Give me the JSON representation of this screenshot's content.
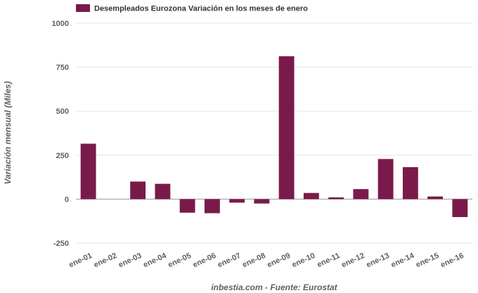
{
  "chart_data": {
    "type": "bar",
    "categories": [
      "ene-01",
      "ene-02",
      "ene-03",
      "ene-04",
      "ene-05",
      "ene-06",
      "ene-07",
      "ene-08",
      "ene-09",
      "ene-10",
      "ene-11",
      "ene-12",
      "ene-13",
      "ene-14",
      "ene-15",
      "ene-16"
    ],
    "series": [
      {
        "name": "Desempleados Eurozona Variación en los meses de enero",
        "values": [
          315,
          0,
          100,
          87,
          -77,
          -80,
          -20,
          -25,
          812,
          35,
          10,
          57,
          228,
          182,
          15,
          -102
        ]
      }
    ],
    "ylabel": "Variación mensual (Miles)",
    "ylim": [
      -250,
      1000
    ],
    "yticks": [
      1000,
      750,
      500,
      250,
      0,
      -250
    ],
    "ytick_labels": [
      "1000",
      "750",
      "500",
      "250",
      "0",
      "-250"
    ],
    "grid": true,
    "legend_position": "top-left",
    "color": "#7a1a4a",
    "source": "inbestia.com - Fuente: Eurostat"
  }
}
